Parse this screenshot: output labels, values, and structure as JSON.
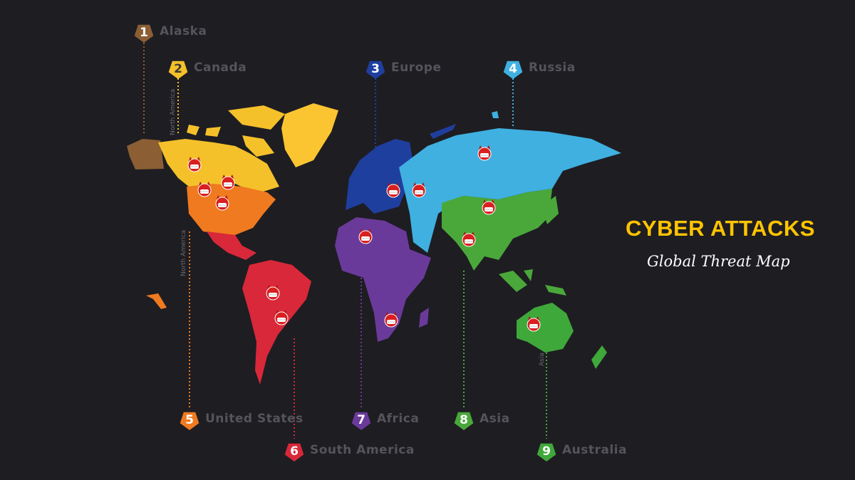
{
  "title": "CYBER ATTACKS",
  "subtitle": "Global Threat Map",
  "background_color": "#1e1d22",
  "title_color": "#ffc400",
  "regions": [
    {
      "number": "1",
      "name": "Alaska",
      "color": "#8b5e34"
    },
    {
      "number": "2",
      "name": "Canada",
      "color": "#f5c12a"
    },
    {
      "number": "3",
      "name": "Europe",
      "color": "#1f3f9e"
    },
    {
      "number": "4",
      "name": "Russia",
      "color": "#3fb0e0"
    },
    {
      "number": "5",
      "name": "United States",
      "color": "#f07a1f"
    },
    {
      "number": "6",
      "name": "South America",
      "color": "#d8283a"
    },
    {
      "number": "7",
      "name": "Africa",
      "color": "#6a3a9a"
    },
    {
      "number": "8",
      "name": "Asia",
      "color": "#4aa83a"
    },
    {
      "number": "9",
      "name": "Australia",
      "color": "#3fa83a"
    }
  ],
  "continent_labels": [
    "North America",
    "North America",
    "Asia"
  ],
  "threat_icon": "devil-face-icon",
  "threat_count": 14
}
